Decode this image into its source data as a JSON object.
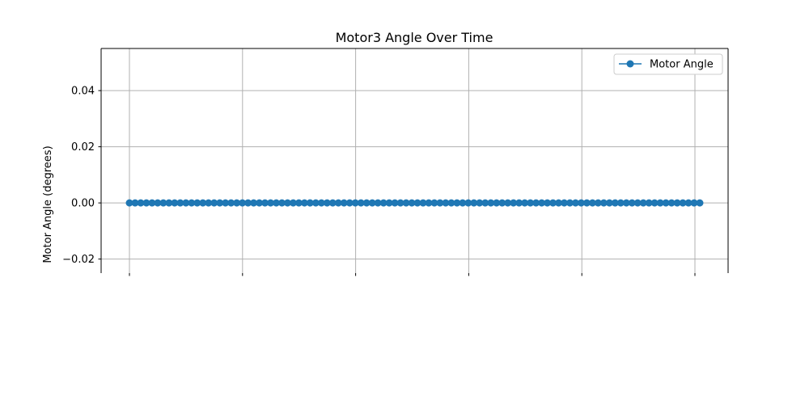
{
  "chart_data": {
    "type": "line",
    "title": "Motor3 Angle Over Time",
    "xlabel": "",
    "ylabel": "Motor Angle (degrees)",
    "ylim": [
      -0.025,
      0.055
    ],
    "yticks": [
      0.04,
      0.02,
      0.0,
      -0.02
    ],
    "ytick_labels": [
      "0.04",
      "0.02",
      "0.00",
      "−0.02"
    ],
    "x_grid_ticks": 6,
    "grid": true,
    "legend_position": "upper right",
    "series": [
      {
        "name": "Motor Angle",
        "color": "#1f77b4",
        "marker": "circle",
        "point_count": 102,
        "values": [
          0,
          0,
          0,
          0,
          0,
          0,
          0,
          0,
          0,
          0,
          0,
          0,
          0,
          0,
          0,
          0,
          0,
          0,
          0,
          0,
          0,
          0,
          0,
          0,
          0,
          0,
          0,
          0,
          0,
          0,
          0,
          0,
          0,
          0,
          0,
          0,
          0,
          0,
          0,
          0,
          0,
          0,
          0,
          0,
          0,
          0,
          0,
          0,
          0,
          0,
          0,
          0,
          0,
          0,
          0,
          0,
          0,
          0,
          0,
          0,
          0,
          0,
          0,
          0,
          0,
          0,
          0,
          0,
          0,
          0,
          0,
          0,
          0,
          0,
          0,
          0,
          0,
          0,
          0,
          0,
          0,
          0,
          0,
          0,
          0,
          0,
          0,
          0,
          0,
          0,
          0,
          0,
          0,
          0,
          0,
          0,
          0,
          0,
          0,
          0,
          0,
          0
        ]
      }
    ]
  }
}
